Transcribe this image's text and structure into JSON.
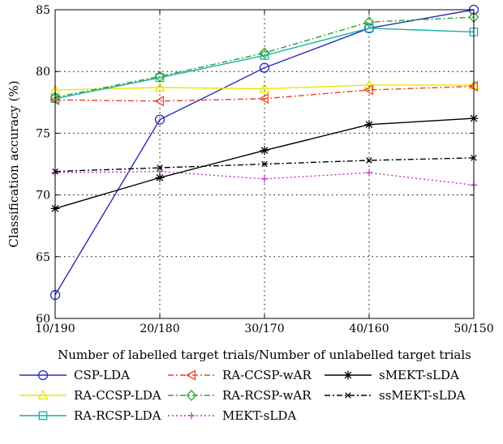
{
  "chart_data": {
    "type": "line",
    "title": "",
    "xlabel": "Number of labelled target trials/Number of unlabelled target trials",
    "ylabel": "Classification accuracy (%)",
    "categories": [
      "10/190",
      "20/180",
      "30/170",
      "40/160",
      "50/150"
    ],
    "ylim": [
      60,
      85
    ],
    "yticks": [
      60,
      65,
      70,
      75,
      80,
      85
    ],
    "grid": "dotted",
    "legend_position": "below",
    "series": [
      {
        "name": "CSP-LDA",
        "values": [
          61.9,
          76.1,
          80.3,
          83.5,
          85.0
        ],
        "color": "#2b2bb8",
        "marker": "circle",
        "dash": "solid"
      },
      {
        "name": "RA-CCSP-LDA",
        "values": [
          78.5,
          78.7,
          78.6,
          78.9,
          78.9
        ],
        "color": "#e8e800",
        "marker": "triangle-up",
        "dash": "solid"
      },
      {
        "name": "RA-RCSP-LDA",
        "values": [
          77.8,
          79.5,
          81.3,
          83.5,
          83.2
        ],
        "color": "#17b0a8",
        "marker": "square",
        "dash": "solid"
      },
      {
        "name": "RA-CCSP-wAR",
        "values": [
          77.7,
          77.6,
          77.8,
          78.5,
          78.8
        ],
        "color": "#e8452a",
        "marker": "triangle-left",
        "dash": "dashdot"
      },
      {
        "name": "RA-RCSP-wAR",
        "values": [
          77.9,
          79.6,
          81.5,
          84.0,
          84.4
        ],
        "color": "#2aa52a",
        "marker": "diamond",
        "dash": "dashdot"
      },
      {
        "name": "MEKT-sLDA",
        "values": [
          71.8,
          71.9,
          71.3,
          71.8,
          70.8
        ],
        "color": "#c232c2",
        "marker": "plus",
        "dash": "dotted"
      },
      {
        "name": "sMEKT-sLDA",
        "values": [
          68.9,
          71.4,
          73.6,
          75.7,
          76.2
        ],
        "color": "#000000",
        "marker": "asterisk",
        "dash": "solid"
      },
      {
        "name": "ssMEKT-sLDA",
        "values": [
          71.9,
          72.2,
          72.5,
          72.8,
          73.0
        ],
        "color": "#000000",
        "marker": "cross",
        "dash": "dashdot"
      }
    ]
  }
}
